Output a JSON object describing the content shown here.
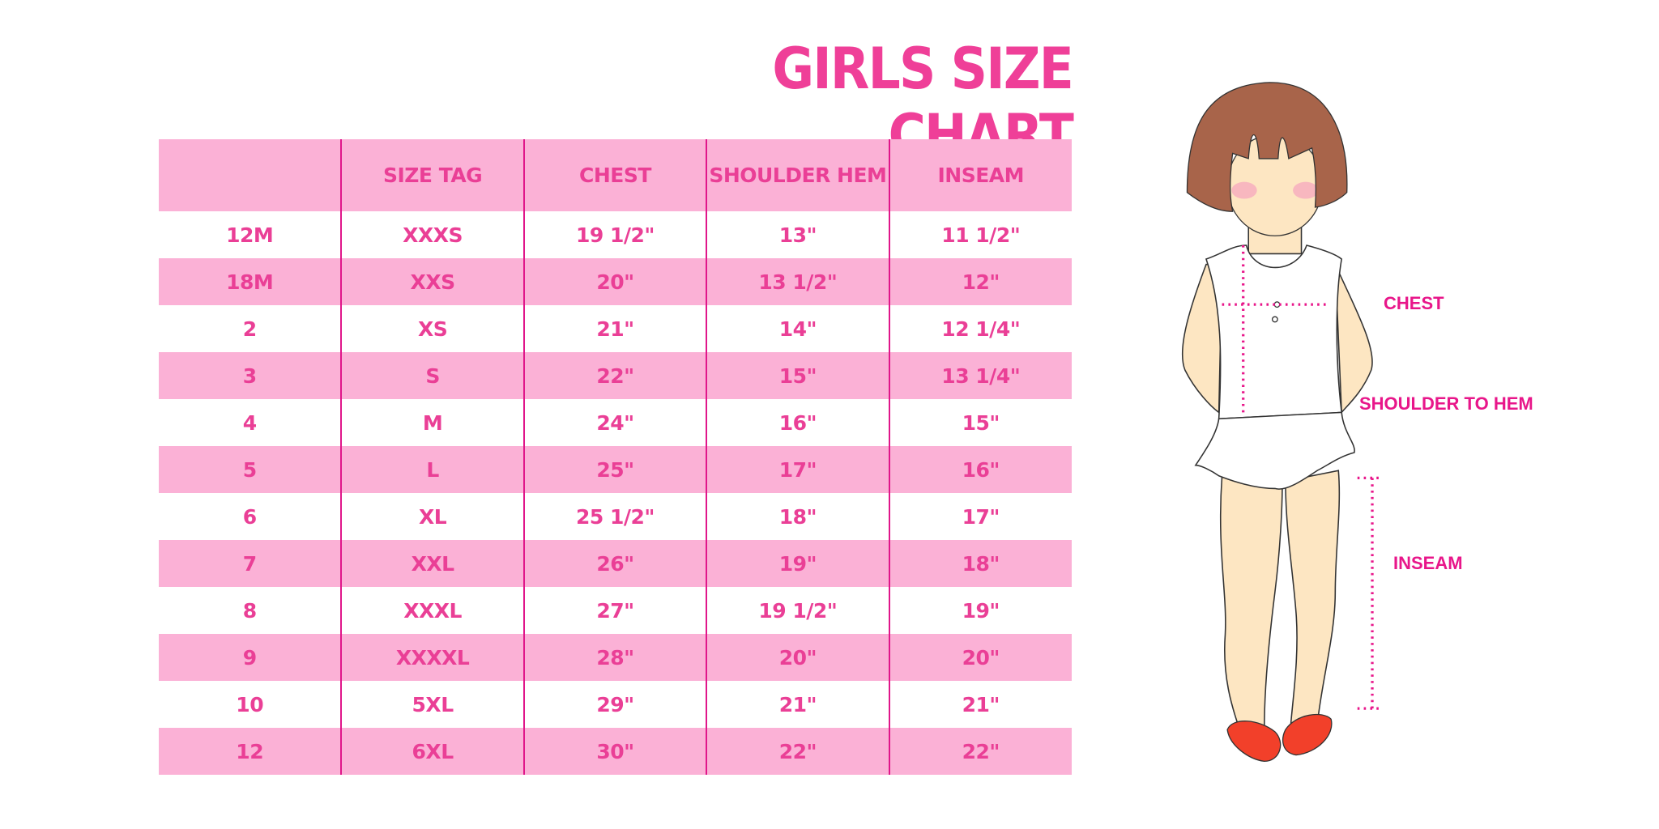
{
  "title": "GIRLS SIZE CHART",
  "table": {
    "headers": [
      "",
      "SIZE TAG",
      "CHEST",
      "SHOULDER HEM",
      "INSEAM"
    ],
    "rows": [
      [
        "12M",
        "XXXS",
        "19 1/2\"",
        "13\"",
        "11 1/2\""
      ],
      [
        "18M",
        "XXS",
        "20\"",
        "13 1/2\"",
        "12\""
      ],
      [
        "2",
        "XS",
        "21\"",
        "14\"",
        "12 1/4\""
      ],
      [
        "3",
        "S",
        "22\"",
        "15\"",
        "13 1/4\""
      ],
      [
        "4",
        "M",
        "24\"",
        "16\"",
        "15\""
      ],
      [
        "5",
        "L",
        "25\"",
        "17\"",
        "16\""
      ],
      [
        "6",
        "XL",
        "25 1/2\"",
        "18\"",
        "17\""
      ],
      [
        "7",
        "XXL",
        "26\"",
        "19\"",
        "18\""
      ],
      [
        "8",
        "XXXL",
        "27\"",
        "19 1/2\"",
        "19\""
      ],
      [
        "9",
        "XXXXL",
        "28\"",
        "20\"",
        "20\""
      ],
      [
        "10",
        "5XL",
        "29\"",
        "21\"",
        "21\""
      ],
      [
        "12",
        "6XL",
        "30\"",
        "22\"",
        "22\""
      ]
    ]
  },
  "figure": {
    "labels": {
      "chest": "CHEST",
      "shoulder_to_hem": "SHOULDER TO HEM",
      "inseam": "INSEAM"
    }
  },
  "colors": {
    "title": "#ef3f98",
    "row_pink": "#fbb1d6",
    "divider": "#e0168a",
    "measure": "#e8168a"
  }
}
